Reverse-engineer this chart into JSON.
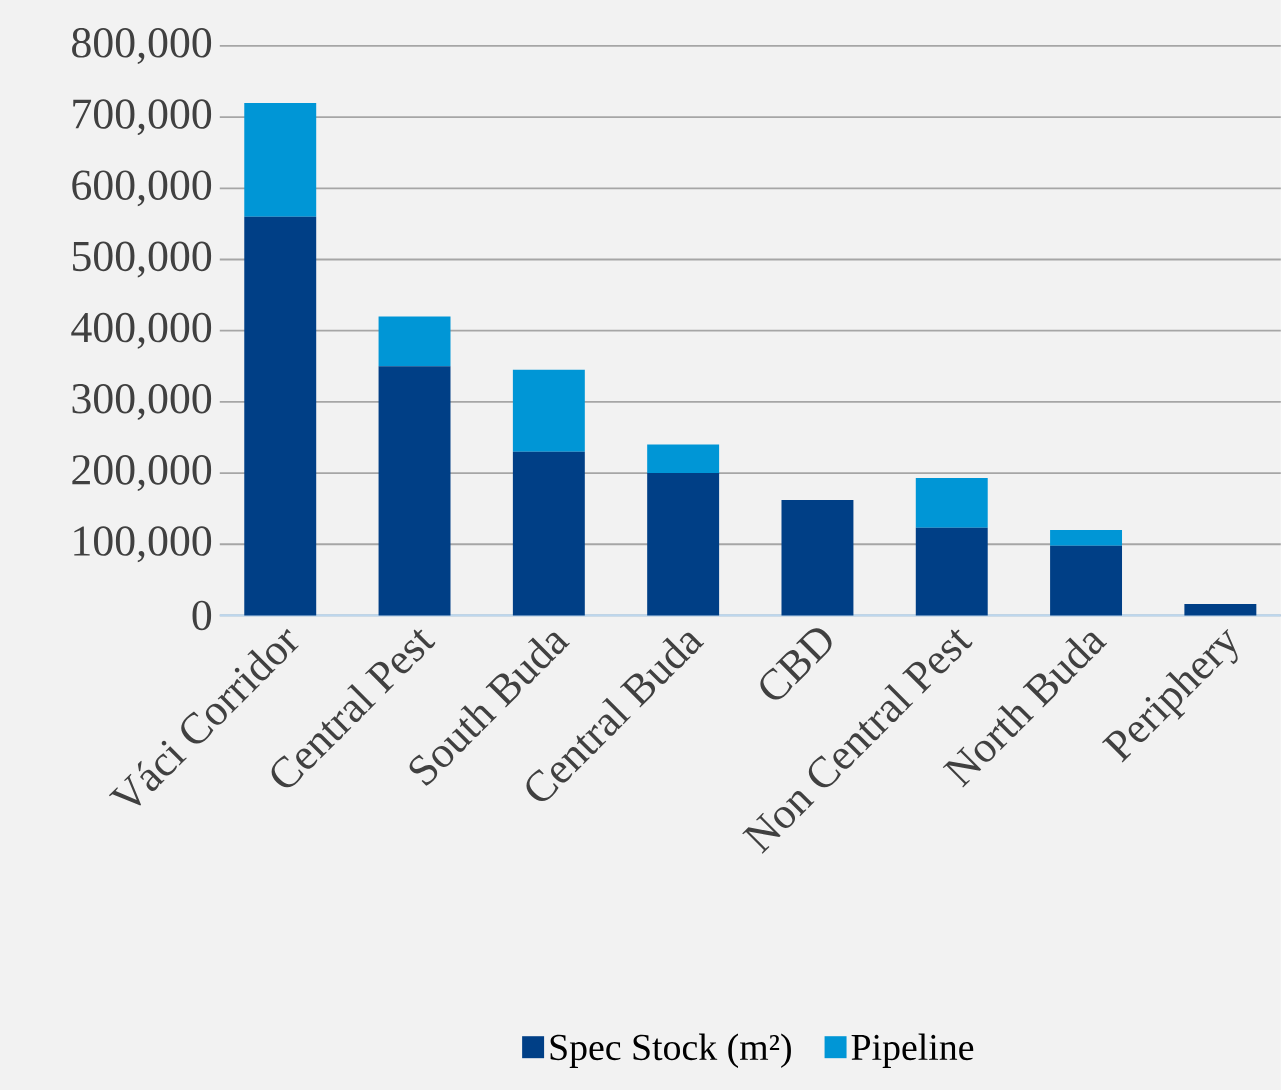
{
  "chart_data": {
    "type": "bar",
    "stacked": true,
    "categories": [
      "Váci Corridor",
      "Central Pest",
      "South Buda",
      "Central Buda",
      "CBD",
      "Non Central Pest",
      "North Buda",
      "Periphery"
    ],
    "series": [
      {
        "name": "Spec Stock (m²)",
        "color": "#003f86",
        "values": [
          560000,
          350000,
          230000,
          200000,
          162000,
          123000,
          98000,
          16000
        ]
      },
      {
        "name": "Pipeline",
        "color": "#0096d6",
        "values": [
          160000,
          70000,
          115000,
          40000,
          0,
          70000,
          22000,
          0
        ]
      }
    ],
    "ylim": [
      0,
      800000
    ],
    "yticks": [
      {
        "value": 0,
        "label": "0"
      },
      {
        "value": 100000,
        "label": "100,000"
      },
      {
        "value": 200000,
        "label": "200,000"
      },
      {
        "value": 300000,
        "label": "300,000"
      },
      {
        "value": 400000,
        "label": "400,000"
      },
      {
        "value": 500000,
        "label": "500,000"
      },
      {
        "value": 600000,
        "label": "600,000"
      },
      {
        "value": 700000,
        "label": "700,000"
      },
      {
        "value": 800000,
        "label": "800,000"
      }
    ],
    "grid": "y",
    "legend": "bottom"
  }
}
